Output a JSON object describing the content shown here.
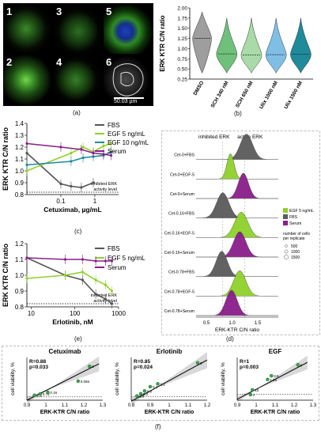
{
  "panel_labels": {
    "a": "(a)",
    "b": "(b)",
    "c": "(c)",
    "d": "(d)",
    "e": "(e)",
    "f": "(f)"
  },
  "micro": {
    "tiles": [
      "1",
      "3",
      "5",
      "2",
      "4",
      "6"
    ],
    "scale": "50.03 µm"
  },
  "chart_data": [
    {
      "id": "b",
      "type": "violin",
      "ylabel": "ERK KTR C/N ratio",
      "ylim": [
        0.25,
        2.0
      ],
      "yticks": [
        0.25,
        0.5,
        0.75,
        1.0,
        1.25,
        1.5,
        1.75,
        2.0
      ],
      "categories": [
        "DMSO",
        "SCH 340 nM",
        "SCH 650 nM",
        "Ulix 1000 nM",
        "Ulix 1500 nM"
      ],
      "medians": [
        1.25,
        0.87,
        0.84,
        0.85,
        0.86
      ],
      "colors": {
        "DMSO": "#9e9e9e",
        "SCH 340 nM": "#6ec07b",
        "SCH 650 nM": "#a8dba8",
        "Ulix 1000 nM": "#7fbfe6",
        "Ulix 1500 nM": "#1f8a9a"
      }
    },
    {
      "id": "c",
      "type": "line",
      "xlabel": "Cetuximab, µg/mL",
      "ylabel": "ERK KTR C/N ratio",
      "xscale": "log",
      "xlim": [
        0.01,
        5
      ],
      "xticks": [
        0.1,
        1
      ],
      "ylim": [
        0.8,
        1.4
      ],
      "yticks": [
        0.8,
        0.9,
        1.0,
        1.1,
        1.2,
        1.3,
        1.4
      ],
      "threshold": {
        "y": 0.82,
        "label": "inhibited ERK activity level"
      },
      "series": [
        {
          "name": "FBS",
          "color": "#555555",
          "x": [
            0.01,
            0.1,
            0.2,
            0.4,
            0.9
          ],
          "y": [
            1.15,
            0.89,
            0.87,
            0.86,
            0.9
          ]
        },
        {
          "name": "EGF 5 ng/mL",
          "color": "#8fd12b",
          "x": [
            0.01,
            0.2,
            0.45,
            0.9,
            1.8,
            3.0
          ],
          "y": [
            1.0,
            1.15,
            1.2,
            1.16,
            1.21,
            1.23
          ]
        },
        {
          "name": "EGF 10 ng/mL",
          "color": "#1f8a9a",
          "x": [
            0.01,
            0.2,
            0.45,
            0.9,
            1.8,
            3.0
          ],
          "y": [
            1.05,
            1.08,
            1.11,
            1.12,
            1.13,
            1.16
          ]
        },
        {
          "name": "Serum",
          "color": "#8a1e8a",
          "x": [
            0.01,
            0.1,
            0.4,
            0.9,
            1.8,
            3.0
          ],
          "y": [
            1.23,
            1.2,
            1.18,
            1.15,
            1.14,
            1.13
          ]
        }
      ]
    },
    {
      "id": "d",
      "type": "ridgeline",
      "xlabel": "ERK-KTR C/N ratio",
      "xlim": [
        0.3,
        1.9
      ],
      "xticks": [
        0.5,
        1.0,
        1.5
      ],
      "header_left": "inhibited ERK",
      "header_right": "active ERK",
      "rows": [
        {
          "label": "Cet-0+FBS",
          "group": "FBS",
          "peak": 1.28,
          "width": 0.12
        },
        {
          "label": "Cet-0+EGF-5",
          "group": "EGF 5 ng/mL",
          "peak": 0.97,
          "width": 0.07
        },
        {
          "label": "Cet-0+Serum",
          "group": "Serum",
          "peak": 1.22,
          "width": 0.1
        },
        {
          "label": "Cet-0.16+FBS",
          "group": "FBS",
          "peak": 0.82,
          "width": 0.12
        },
        {
          "label": "Cet-0.16+EGF-5",
          "group": "EGF 5 ng/mL",
          "peak": 1.18,
          "width": 0.13
        },
        {
          "label": "Cet-0.16+Serum",
          "group": "Serum",
          "peak": 1.15,
          "width": 0.12
        },
        {
          "label": "Cet-0.78+FBS",
          "group": "FBS",
          "peak": 0.8,
          "width": 0.11
        },
        {
          "label": "Cet-0.78+EGF-5",
          "group": "EGF 5 ng/mL",
          "peak": 1.15,
          "width": 0.12
        },
        {
          "label": "Cet-0.78+Serum",
          "group": "Serum",
          "peak": 0.99,
          "width": 0.11
        }
      ],
      "legend": [
        {
          "name": "EGF 5 ng/mL",
          "color": "#8fd12b"
        },
        {
          "name": "FBS",
          "color": "#5a5a5a"
        },
        {
          "name": "Serum",
          "color": "#8a1e8a"
        }
      ],
      "size_legend": {
        "title": "number of cells per replicate",
        "values": [
          "500",
          "1000",
          "1500"
        ]
      }
    },
    {
      "id": "e",
      "type": "line",
      "xlabel": "Erlotinib, nM",
      "ylabel": "ERK KTR C/N ratio",
      "xscale": "log",
      "xlim": [
        8,
        1000
      ],
      "xticks": [
        10,
        100,
        1000
      ],
      "ylim": [
        0.8,
        1.2
      ],
      "yticks": [
        0.8,
        0.9,
        1.0,
        1.1,
        1.2
      ],
      "threshold": {
        "y": 0.82,
        "label": "inhibited ERK activity level"
      },
      "series": [
        {
          "name": "FBS",
          "color": "#555555",
          "x": [
            8,
            60,
            150,
            300,
            500,
            700
          ],
          "y": [
            1.11,
            1.0,
            0.97,
            0.88,
            0.85,
            0.82
          ]
        },
        {
          "name": "EGF 5 ng/mL",
          "color": "#8fd12b",
          "x": [
            8,
            60,
            150,
            300,
            500,
            700
          ],
          "y": [
            0.98,
            1.0,
            1.02,
            0.97,
            0.94,
            0.9
          ]
        },
        {
          "name": "Serum",
          "color": "#8a1e8a",
          "x": [
            8,
            60,
            150,
            300,
            500,
            700
          ],
          "y": [
            1.11,
            1.1,
            1.1,
            1.09,
            1.09,
            1.09
          ]
        }
      ]
    },
    {
      "id": "f1",
      "type": "scatter",
      "title": "Cetuximab",
      "xlabel": "ERK-KTR C/N ratio",
      "ylabel": "cell viability, %",
      "xlim": [
        0.9,
        1.3
      ],
      "xticks": [
        0.9,
        1,
        1.1,
        1.2,
        1.3
      ],
      "ylim": [
        -10,
        120
      ],
      "stats": [
        "R=0.88",
        "p=0.033"
      ],
      "points": [
        {
          "x": 0.94,
          "y": 5,
          "label": "1.5"
        },
        {
          "x": 0.97,
          "y": 9,
          "label": "0.78"
        },
        {
          "x": 1.01,
          "y": 14,
          "label": "0.16"
        },
        {
          "x": 1.17,
          "y": 48,
          "label": "0.066"
        },
        {
          "x": 1.23,
          "y": 93,
          "label": "0"
        }
      ]
    },
    {
      "id": "f2",
      "type": "scatter",
      "title": "Erlotinib",
      "xlabel": "ERK-KTR C/N ratio",
      "ylabel": "cell viability, %",
      "xlim": [
        0.8,
        1.2
      ],
      "xticks": [
        0.8,
        0.9,
        1.0,
        1.1,
        1.2
      ],
      "ylim": [
        -10,
        110
      ],
      "stats": [
        "R=0.85",
        "p=0.024"
      ],
      "points": [
        {
          "x": 0.83,
          "y": 2,
          "label": "1.8"
        },
        {
          "x": 0.85,
          "y": 8,
          "label": "0.2"
        },
        {
          "x": 0.87,
          "y": 16,
          "label": "0.8"
        },
        {
          "x": 0.9,
          "y": 28,
          "label": "0.2"
        },
        {
          "x": 0.94,
          "y": 36,
          "label": "0.2"
        },
        {
          "x": 1.15,
          "y": 95,
          "label": "0"
        }
      ]
    },
    {
      "id": "f3",
      "type": "scatter",
      "title": "EGF",
      "xlabel": "ERK-KTR C/N ratio",
      "ylabel": "cell viability, %",
      "xlim": [
        0.9,
        1.3
      ],
      "xticks": [
        0.9,
        1.0,
        1.1,
        1.2,
        1.3
      ],
      "ylim": [
        -20,
        120
      ],
      "stats": [
        "R=1",
        "p=0.003"
      ],
      "points": [
        {
          "x": 0.97,
          "y": -2,
          "label": "2"
        },
        {
          "x": 0.98,
          "y": 14,
          "label": "10"
        },
        {
          "x": 1.06,
          "y": 48,
          "label": "1.25"
        },
        {
          "x": 1.08,
          "y": 60,
          "label": "0.5"
        },
        {
          "x": 1.22,
          "y": 96,
          "label": "0"
        }
      ]
    }
  ]
}
